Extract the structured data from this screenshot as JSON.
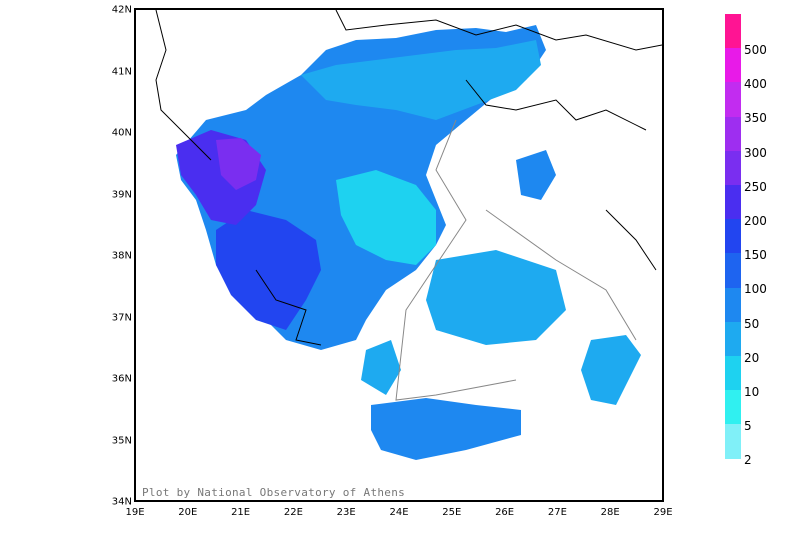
{
  "map": {
    "lat_labels": [
      "42N",
      "41N",
      "40N",
      "39N",
      "38N",
      "37N",
      "36N",
      "35N",
      "34N"
    ],
    "lon_labels": [
      "19E",
      "20E",
      "21E",
      "22E",
      "23E",
      "24E",
      "25E",
      "26E",
      "27E",
      "28E",
      "29E"
    ],
    "lat_range": [
      34,
      42
    ],
    "lon_range": [
      19,
      29
    ],
    "credit": "Plot by National Observatory of Athens"
  },
  "legend": {
    "labels": [
      "500",
      "400",
      "350",
      "300",
      "250",
      "200",
      "150",
      "100",
      "50",
      "20",
      "10",
      "5",
      "2"
    ],
    "colors": [
      "#ff1493",
      "#e81ae8",
      "#c22cf0",
      "#9e2ef0",
      "#7a2ef0",
      "#4a2ef0",
      "#2245f0",
      "#1e64f0",
      "#1e88f0",
      "#1eaaf0",
      "#1ed2f0",
      "#30f0f0",
      "#80f0f8"
    ]
  }
}
